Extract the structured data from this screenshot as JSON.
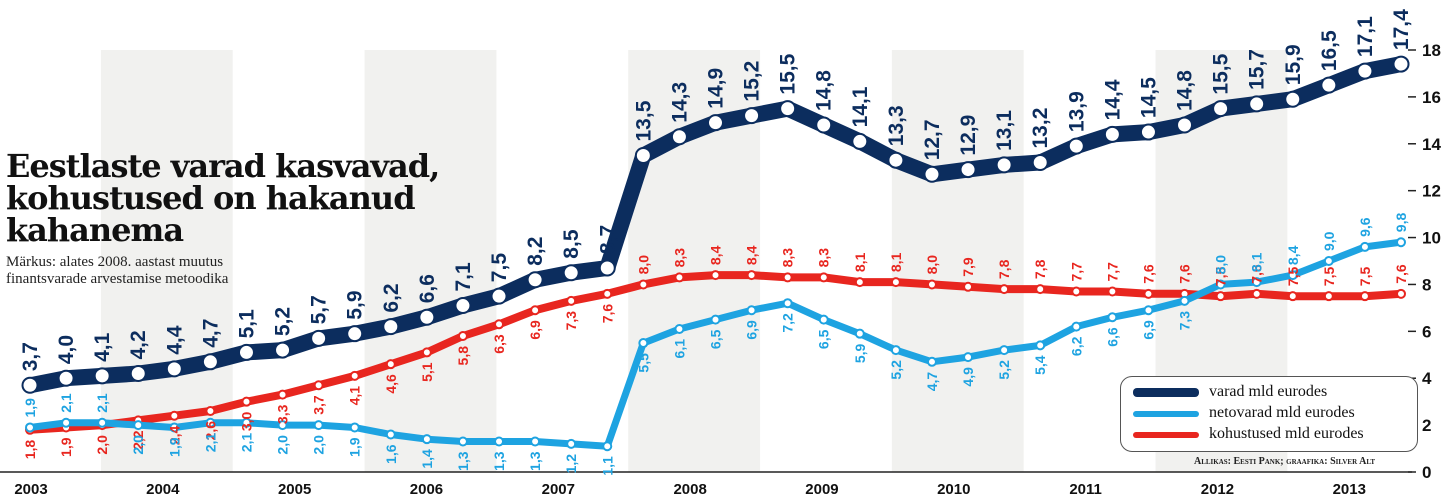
{
  "title": "Eestlaste varad kasvavad, kohustused on  hakanud kahanema",
  "note": "Märkus: alates 2008. aastast muutus finantsvarade arvestamise metoodika",
  "source": "Allikas: Eesti Pank; graafika: Silver Alt",
  "colors": {
    "varad": "#0c2d5e",
    "netovarad": "#1ea3e1",
    "kohustused": "#e8261f",
    "band": "#e6e5e1"
  },
  "chart_data": {
    "type": "line",
    "x_labels": [
      "2003",
      "2004",
      "2005",
      "2006",
      "2007",
      "2008",
      "2009",
      "2010",
      "2011",
      "2012",
      "2013"
    ],
    "ylim": [
      0,
      18
    ],
    "yticks": [
      "0",
      "2",
      "4",
      "6",
      "8",
      "10",
      "12",
      "14",
      "16",
      "18"
    ],
    "legend_position": "bottom-right",
    "series": [
      {
        "name": "varad mld eurodes",
        "key": "varad",
        "labels": [
          "3,7",
          "4,0",
          "4,1",
          "4,2",
          "4,4",
          "4,7",
          "5,1",
          "5,2",
          "5,7",
          "5,9",
          "6,2",
          "6,6",
          "7,1",
          "7,5",
          "8,2",
          "8,5",
          "8,7",
          "13,5",
          "14,3",
          "14,9",
          "15,2",
          "15,5",
          "14,8",
          "14,1",
          "13,3",
          "12,7",
          "12,9",
          "13,1",
          "13,2",
          "13,9",
          "14,4",
          "14,5",
          "14,8",
          "15,5",
          "15,7",
          "15,9",
          "16,5",
          "17,1",
          "17,4"
        ],
        "values": [
          3.7,
          4.0,
          4.1,
          4.2,
          4.4,
          4.7,
          5.1,
          5.2,
          5.7,
          5.9,
          6.2,
          6.6,
          7.1,
          7.5,
          8.2,
          8.5,
          8.7,
          13.5,
          14.3,
          14.9,
          15.2,
          15.5,
          14.8,
          14.1,
          13.3,
          12.7,
          12.9,
          13.1,
          13.2,
          13.9,
          14.4,
          14.5,
          14.8,
          15.5,
          15.7,
          15.9,
          16.5,
          17.1,
          17.4
        ]
      },
      {
        "name": "netovarad mld eurodes",
        "key": "netovarad",
        "labels": [
          "1,9",
          "2,1",
          "2,1",
          "2,0",
          "1,9",
          "2,1",
          "2,1",
          "2,0",
          "2,0",
          "1,9",
          "1,6",
          "1,4",
          "1,3",
          "1,3",
          "1,3",
          "1,2",
          "1,1",
          "5,5",
          "6,1",
          "6,5",
          "6,9",
          "7,2",
          "6,5",
          "5,9",
          "5,2",
          "4,7",
          "4,9",
          "5,2",
          "5,4",
          "6,2",
          "6,6",
          "6,9",
          "7,3",
          "8,0",
          "8,1",
          "8,4",
          "9,0",
          "9,6",
          "9,8"
        ],
        "values": [
          1.9,
          2.1,
          2.1,
          2.0,
          1.9,
          2.1,
          2.1,
          2.0,
          2.0,
          1.9,
          1.6,
          1.4,
          1.3,
          1.3,
          1.3,
          1.2,
          1.1,
          5.5,
          6.1,
          6.5,
          6.9,
          7.2,
          6.5,
          5.9,
          5.2,
          4.7,
          4.9,
          5.2,
          5.4,
          6.2,
          6.6,
          6.9,
          7.3,
          8.0,
          8.1,
          8.4,
          9.0,
          9.6,
          9.8
        ]
      },
      {
        "name": "kohustused mld eurodes",
        "key": "kohustused",
        "labels": [
          "1,8",
          "1,9",
          "2,0",
          "2,2",
          "2,4",
          "2,6",
          "3,0",
          "3,3",
          "3,7",
          "4,1",
          "4,6",
          "5,1",
          "5,8",
          "6,3",
          "6,9",
          "7,3",
          "7,6",
          "8,0",
          "8,3",
          "8,4",
          "8,4",
          "8,3",
          "8,3",
          "8,1",
          "8,1",
          "8,0",
          "7,9",
          "7,8",
          "7,8",
          "7,7",
          "7,7",
          "7,6",
          "7,6",
          "7,5",
          "7,6",
          "7,5",
          "7,5",
          "7,5",
          "7,6"
        ],
        "values": [
          1.8,
          1.9,
          2.0,
          2.2,
          2.4,
          2.6,
          3.0,
          3.3,
          3.7,
          4.1,
          4.6,
          5.1,
          5.8,
          6.3,
          6.9,
          7.3,
          7.6,
          8.0,
          8.3,
          8.4,
          8.4,
          8.3,
          8.3,
          8.1,
          8.1,
          8.0,
          7.9,
          7.8,
          7.8,
          7.7,
          7.7,
          7.6,
          7.6,
          7.5,
          7.6,
          7.5,
          7.5,
          7.5,
          7.6
        ]
      }
    ]
  }
}
